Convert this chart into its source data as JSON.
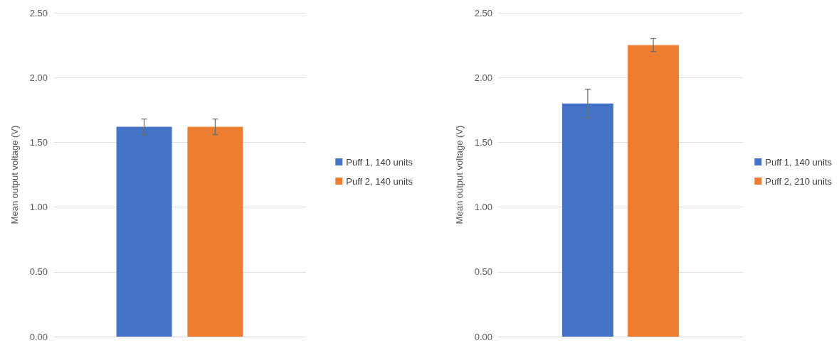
{
  "chart_data": [
    {
      "type": "bar",
      "ylabel": "Mean output voltage (V)",
      "categories": [
        null
      ],
      "ylim": [
        0,
        2.5
      ],
      "yticks": [
        {
          "value": 0,
          "label": "0.00"
        },
        {
          "value": 0.5,
          "label": "0.50"
        },
        {
          "value": 1,
          "label": "1.00"
        },
        {
          "value": 1.5,
          "label": "1.50"
        },
        {
          "value": 2,
          "label": "2.00"
        },
        {
          "value": 2.5,
          "label": "2.50"
        }
      ],
      "grid": "y",
      "legend": "right",
      "series": [
        {
          "name": "Puff 1, 140 units",
          "color": "#4472c4",
          "values": [
            1.62
          ],
          "errors": [
            0.06
          ]
        },
        {
          "name": "Puff 2, 140 units",
          "color": "#ed7d31",
          "values": [
            1.62
          ],
          "errors": [
            0.06
          ]
        }
      ]
    },
    {
      "type": "bar",
      "ylabel": "Mean output voltage (V)",
      "categories": [
        null
      ],
      "ylim": [
        0,
        2.5
      ],
      "yticks": [
        {
          "value": 0,
          "label": "0.00"
        },
        {
          "value": 0.5,
          "label": "0.50"
        },
        {
          "value": 1,
          "label": "1.00"
        },
        {
          "value": 1.5,
          "label": "1.50"
        },
        {
          "value": 2,
          "label": "2.00"
        },
        {
          "value": 2.5,
          "label": "2.50"
        }
      ],
      "grid": "y",
      "legend": "right",
      "series": [
        {
          "name": "Puff 1, 140 units",
          "color": "#4472c4",
          "values": [
            1.8
          ],
          "errors": [
            0.11
          ]
        },
        {
          "name": "Puff 2, 210 units",
          "color": "#ed7d31",
          "values": [
            2.25
          ],
          "errors": [
            0.05
          ]
        }
      ]
    }
  ]
}
